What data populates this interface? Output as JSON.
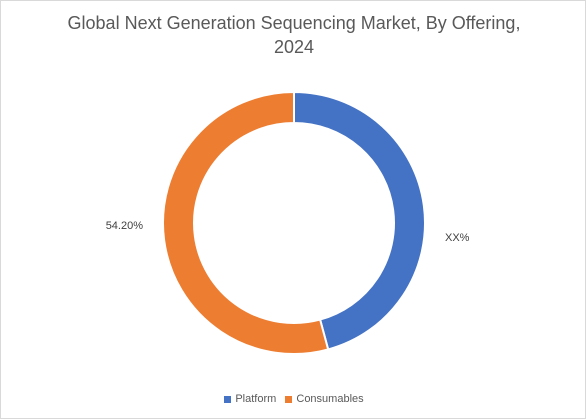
{
  "chart_data": {
    "type": "pie",
    "title_line1": "Global Next Generation Sequencing Market, By Offering,",
    "title_line2": "2024",
    "donut": true,
    "slices": [
      {
        "name": "Platform",
        "value": 45.8,
        "label": "XX%",
        "color": "#4472C4"
      },
      {
        "name": "Consumables",
        "value": 54.2,
        "label": "54.20%",
        "color": "#ED7D31"
      }
    ],
    "legend_position": "bottom"
  }
}
